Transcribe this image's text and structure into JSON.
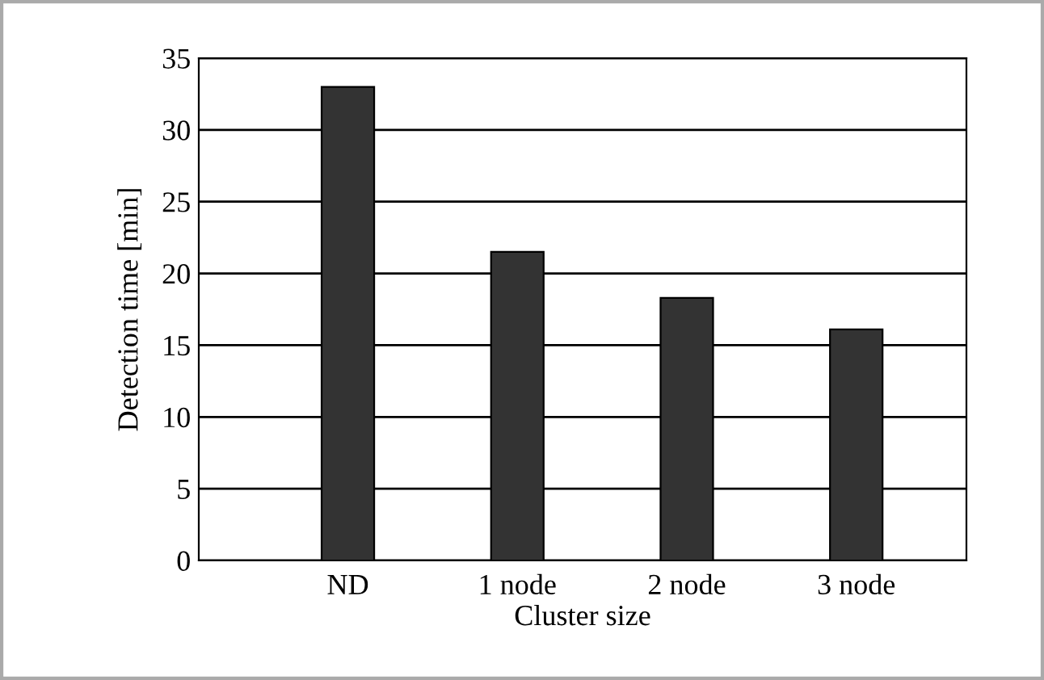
{
  "chart_data": {
    "type": "bar",
    "xlabel": "Cluster size",
    "ylabel": "Detection time [min]",
    "categories": [
      "ND",
      "1 node",
      "2 node",
      "3 node"
    ],
    "values": [
      33.0,
      21.5,
      18.3,
      16.1
    ],
    "color": "#333333",
    "ylim": [
      0,
      35
    ],
    "yticks": [
      0,
      5,
      10,
      15,
      20,
      25,
      30,
      35
    ],
    "grid": "y",
    "legend": false
  }
}
